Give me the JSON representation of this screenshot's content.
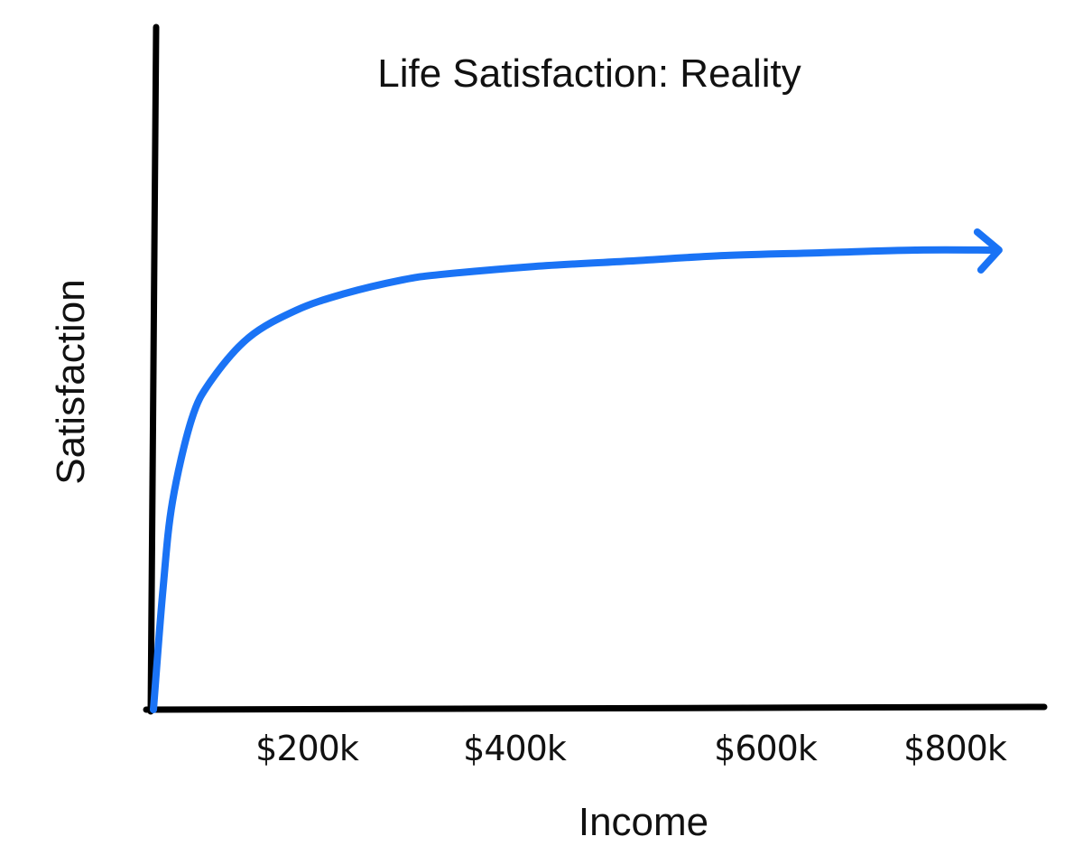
{
  "chart_data": {
    "type": "line",
    "title": "Life Satisfaction: Reality",
    "xlabel": "Income",
    "ylabel": "Satisfaction",
    "x_tick_labels": [
      "$200k",
      "$400k",
      "$600k",
      "$800k"
    ],
    "x_tick_values": [
      200,
      400,
      600,
      800
    ],
    "x_unit": "$k",
    "xlim": [
      0,
      900
    ],
    "y_axis_ticks": "none",
    "grid": false,
    "legend": "none",
    "arrow_at_end": true,
    "series": [
      {
        "x": [
          0,
          10,
          20,
          40,
          60,
          100,
          150,
          200,
          260,
          300,
          400,
          500,
          600,
          700,
          800,
          880
        ],
        "y": [
          0,
          0.22,
          0.38,
          0.53,
          0.6,
          0.68,
          0.73,
          0.76,
          0.785,
          0.795,
          0.81,
          0.82,
          0.83,
          0.835,
          0.84,
          0.84
        ]
      }
    ],
    "colors": {
      "line": "#1a73f5",
      "axes": "#000000"
    }
  }
}
